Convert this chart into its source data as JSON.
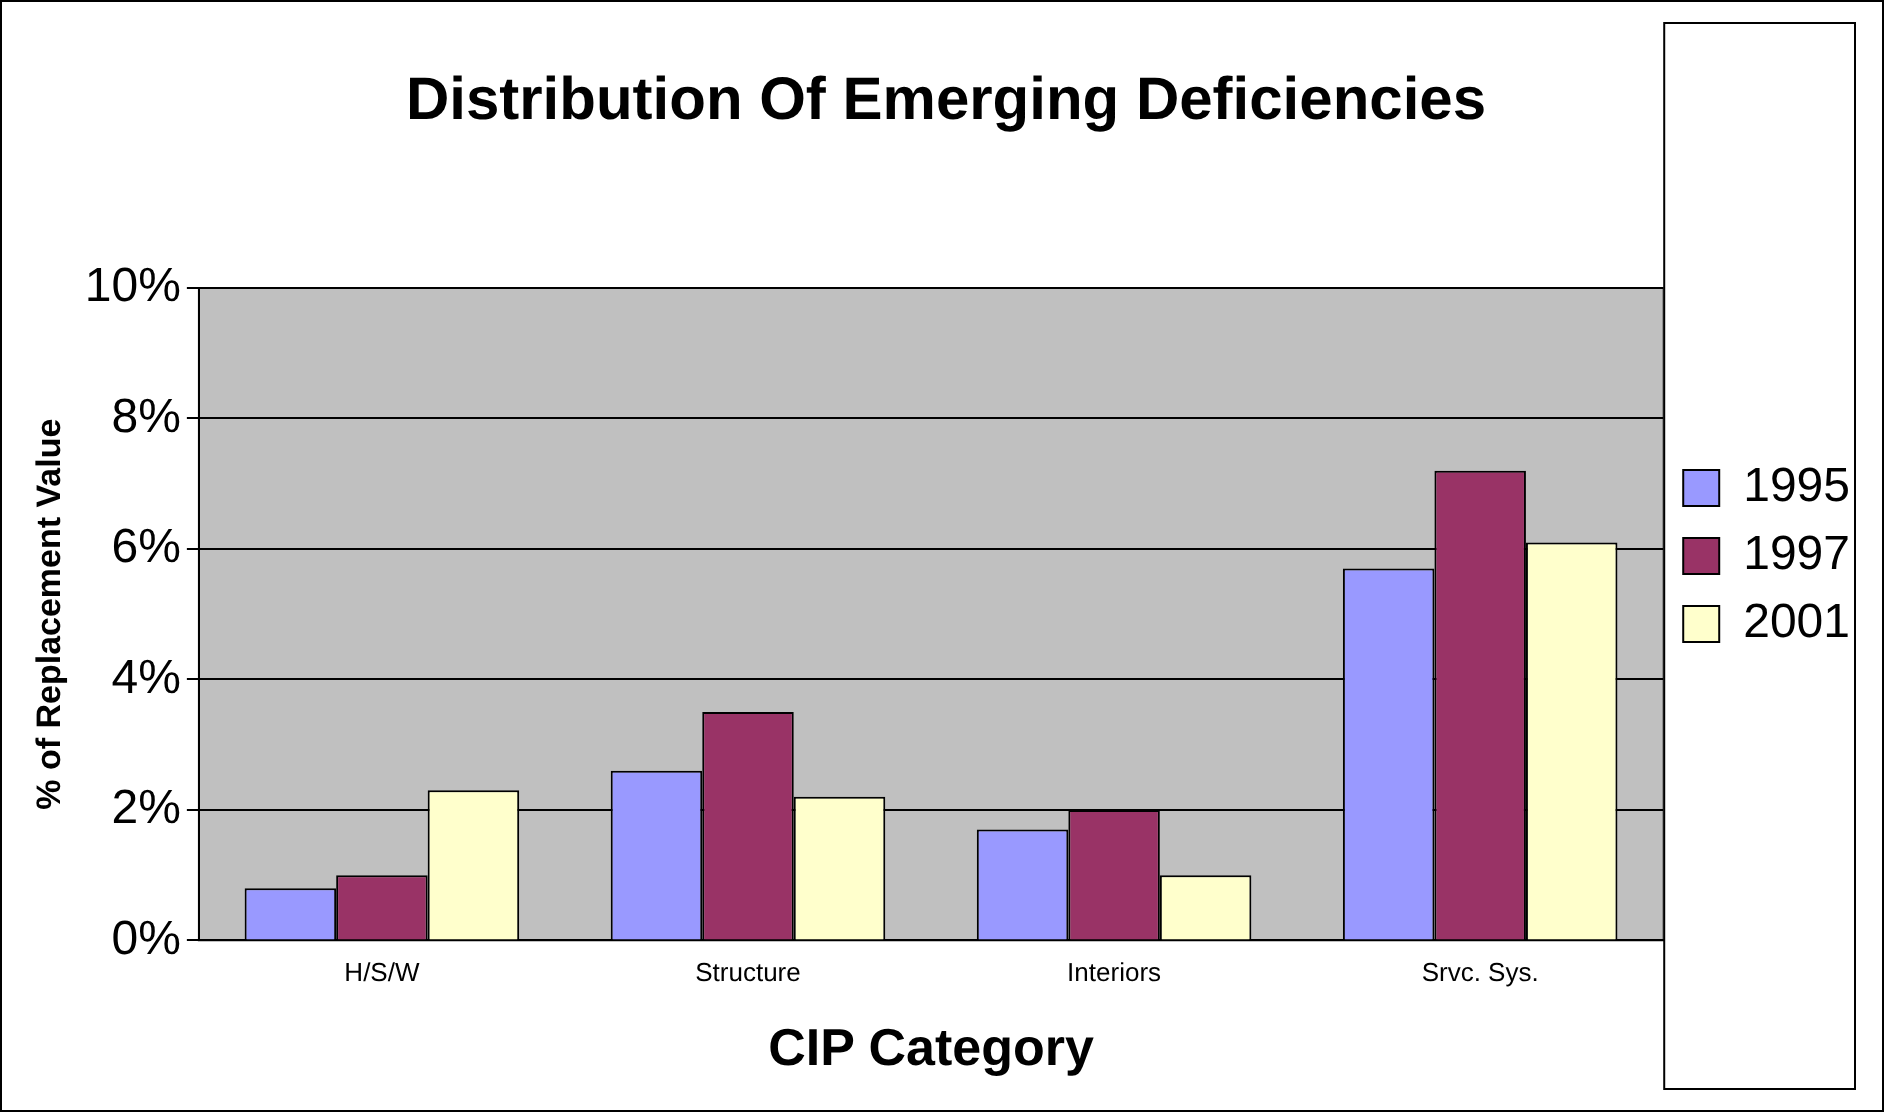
{
  "chart_data": {
    "type": "bar",
    "title": "Distribution Of Emerging Deficiencies",
    "xlabel": "CIP Category",
    "ylabel": "% of Replacement Value",
    "categories": [
      "H/S/W",
      "Structure",
      "Interiors",
      "Srvc. Sys."
    ],
    "series": [
      {
        "name": "1995",
        "color": "#9999ff",
        "values": [
          0.8,
          2.6,
          1.7,
          5.7
        ]
      },
      {
        "name": "1997",
        "color": "#993366",
        "values": [
          1.0,
          3.5,
          2.0,
          7.2
        ]
      },
      {
        "name": "2001",
        "color": "#ffffcc",
        "values": [
          2.3,
          2.2,
          1.0,
          6.1
        ]
      }
    ],
    "ylim": [
      0,
      10
    ],
    "yticks": [
      {
        "value": 0,
        "label": "0%"
      },
      {
        "value": 2,
        "label": "2%"
      },
      {
        "value": 4,
        "label": "4%"
      },
      {
        "value": 6,
        "label": "6%"
      },
      {
        "value": 8,
        "label": "8%"
      },
      {
        "value": 10,
        "label": "10%"
      }
    ],
    "grid": "y",
    "legend": "right"
  }
}
